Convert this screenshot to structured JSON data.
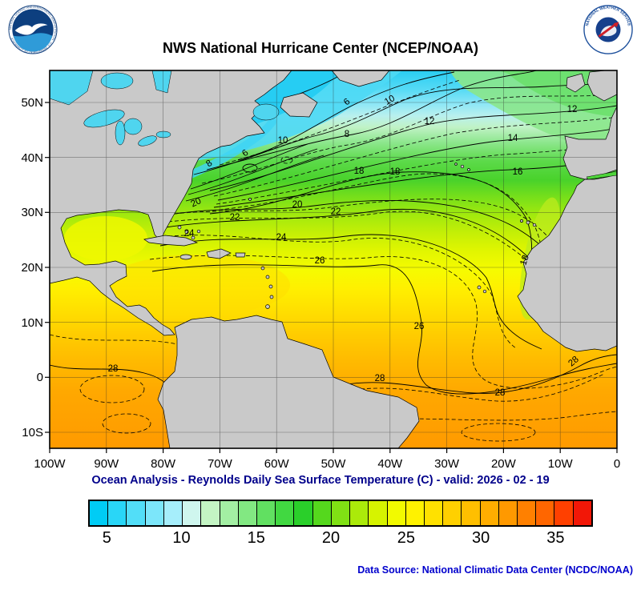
{
  "header": {
    "title": "NWS National Hurricane Center (NCEP/NOAA)",
    "noaa_ring_text": "NATIONAL OCEANIC AND ATMOSPHERIC ADMINISTRATION · U.S. DEPARTMENT OF COMMERCE",
    "nws_ring_text": "NATIONAL WEATHER SERVICE"
  },
  "map": {
    "lat_labels": [
      "50N",
      "40N",
      "30N",
      "20N",
      "10N",
      "0",
      "10S"
    ],
    "lon_labels": [
      "100W",
      "90W",
      "80W",
      "70W",
      "60W",
      "50W",
      "40W",
      "30W",
      "20W",
      "10W",
      "0"
    ],
    "contour_labels": [
      "6",
      "10",
      "12",
      "12",
      "8",
      "10",
      "14",
      "6",
      "8",
      "16",
      "18",
      "18",
      "20",
      "20",
      "22",
      "22",
      "24",
      "24",
      "18",
      "26",
      "26",
      "28",
      "28",
      "28",
      "28"
    ]
  },
  "caption": "Ocean Analysis - Reynolds Daily Sea Surface Temperature (C) - valid: 2026 - 02 - 19",
  "colorbar": {
    "ticks": [
      "5",
      "10",
      "15",
      "20",
      "25",
      "30",
      "35"
    ],
    "colors": [
      "#00CCF5",
      "#29D6F7",
      "#52DEF8",
      "#7CE6FA",
      "#A6EEFB",
      "#CFF6EE",
      "#C4F5C4",
      "#A3EFA3",
      "#82E882",
      "#61E061",
      "#41D841",
      "#2ACF2A",
      "#55D81D",
      "#80E114",
      "#ABEA0A",
      "#D6F300",
      "#F2FA00",
      "#FFF200",
      "#FFE100",
      "#FFD000",
      "#FFBF00",
      "#FFAD00",
      "#FF9900",
      "#FF8000",
      "#FF6600",
      "#FF4000",
      "#F21707"
    ]
  },
  "footer": {
    "source": "Data Source: National Climatic Data Center (NCDC/NOAA)"
  },
  "colors": {
    "caption_text": "#00008B",
    "source_text": "#0000CD",
    "land": "#C9C9C9"
  },
  "chart_data": {
    "type": "heatmap",
    "title": "NWS National Hurricane Center (NCEP/NOAA)",
    "subtitle": "Ocean Analysis - Reynolds Daily Sea Surface Temperature (C) - valid: 2026 - 02 - 19",
    "units": "degrees Celsius",
    "valid_date": "2026 - 02 - 19",
    "region": {
      "lon_min": "100W",
      "lon_max": "0",
      "lat_min": "13S",
      "lat_max": "56N"
    },
    "labeled_contours_c": [
      6,
      8,
      10,
      12,
      14,
      16,
      18,
      20,
      22,
      24,
      26,
      28
    ],
    "colorbar_ticks_c": [
      5,
      10,
      15,
      20,
      25,
      30,
      35
    ],
    "colorbar_range_c": [
      4,
      37
    ],
    "legend_position": "bottom",
    "grid": true,
    "approx_sst_by_latitude": [
      {
        "lat": "55N",
        "sst_c": 5
      },
      {
        "lat": "50N",
        "sst_c": 8
      },
      {
        "lat": "45N",
        "sst_c": 11
      },
      {
        "lat": "40N",
        "sst_c": 16
      },
      {
        "lat": "35N",
        "sst_c": 20
      },
      {
        "lat": "30N",
        "sst_c": 22
      },
      {
        "lat": "25N",
        "sst_c": 24
      },
      {
        "lat": "20N",
        "sst_c": 25.5
      },
      {
        "lat": "15N",
        "sst_c": 26
      },
      {
        "lat": "10N",
        "sst_c": 27
      },
      {
        "lat": "0",
        "sst_c": 28
      },
      {
        "lat": "10S",
        "sst_c": 28
      }
    ]
  }
}
